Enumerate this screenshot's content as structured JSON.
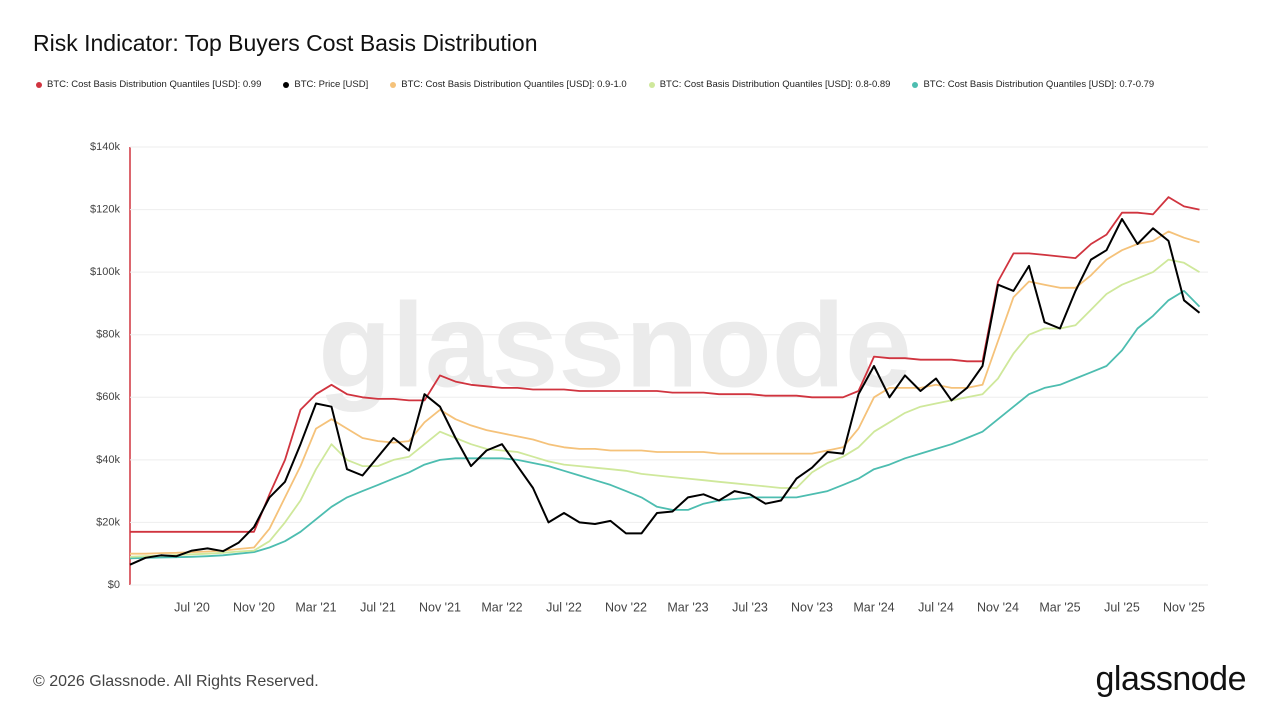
{
  "chart_data": {
    "type": "line",
    "title": "Risk Indicator: Top Buyers Cost Basis Distribution",
    "watermark": "glassnode",
    "categories": [
      null,
      null,
      null,
      null,
      "Jul '20",
      null,
      null,
      null,
      "Nov '20",
      null,
      null,
      null,
      "Mar '21",
      null,
      null,
      null,
      "Jul '21",
      null,
      null,
      null,
      "Nov '21",
      null,
      null,
      null,
      "Mar '22",
      null,
      null,
      null,
      "Jul '22",
      null,
      null,
      null,
      "Nov '22",
      null,
      null,
      null,
      "Mar '23",
      null,
      null,
      null,
      "Jul '23",
      null,
      null,
      null,
      "Nov '23",
      null,
      null,
      null,
      "Mar '24",
      null,
      null,
      null,
      "Jul '24",
      null,
      null,
      null,
      "Nov '24",
      null,
      null,
      null,
      "Mar '25",
      null,
      null,
      null,
      "Jul '25",
      null,
      null,
      null,
      "Nov '25",
      null
    ],
    "series": [
      {
        "name": "BTC: Cost Basis Distribution Quantiles [USD]: 0.99",
        "color": "#d0343f",
        "values": [
          17000,
          17000,
          17000,
          17000,
          17000,
          17000,
          17000,
          17000,
          17000,
          29000,
          40000,
          56000,
          61000,
          64000,
          61000,
          60000,
          59500,
          59500,
          59000,
          59000,
          67000,
          65000,
          64000,
          63500,
          63000,
          63000,
          62500,
          62500,
          62500,
          62000,
          62000,
          62000,
          62000,
          62000,
          62000,
          61500,
          61500,
          61500,
          61000,
          61000,
          61000,
          60500,
          60500,
          60500,
          60000,
          60000,
          60000,
          62000,
          73000,
          72500,
          72500,
          72000,
          72000,
          72000,
          71500,
          71500,
          97000,
          106000,
          106000,
          105500,
          105000,
          104500,
          109000,
          112000,
          119000,
          119000,
          118500,
          124000,
          121000,
          120000
        ]
      },
      {
        "name": "BTC: Price [USD]",
        "color": "#000000",
        "values": [
          6500,
          8700,
          9500,
          9200,
          11000,
          11700,
          10800,
          13500,
          18500,
          28000,
          33000,
          45000,
          58000,
          57000,
          37000,
          35000,
          41000,
          47000,
          43000,
          61000,
          57000,
          47000,
          38000,
          43000,
          45000,
          38000,
          31000,
          20000,
          23000,
          20000,
          19500,
          20500,
          16500,
          16500,
          23000,
          23500,
          28000,
          29000,
          27000,
          30000,
          29000,
          26000,
          27000,
          34000,
          37500,
          42500,
          42000,
          61000,
          70000,
          60000,
          67000,
          62000,
          66000,
          59000,
          63000,
          70000,
          96000,
          94000,
          102000,
          84000,
          82000,
          94000,
          104000,
          107000,
          117000,
          109000,
          114000,
          110000,
          91000,
          87000
        ]
      },
      {
        "name": "BTC: Cost Basis Distribution Quantiles [USD]: 0.9-1.0",
        "color": "#f5c27a",
        "values": [
          10000,
          10000,
          10200,
          10300,
          10500,
          10700,
          11000,
          11500,
          12000,
          18000,
          28000,
          38000,
          50000,
          53000,
          50000,
          47000,
          46000,
          45500,
          46000,
          52000,
          56000,
          53000,
          51000,
          49500,
          48500,
          47500,
          46500,
          45000,
          44000,
          43500,
          43500,
          43000,
          43000,
          43000,
          42500,
          42500,
          42500,
          42500,
          42000,
          42000,
          42000,
          42000,
          42000,
          42000,
          42000,
          43000,
          44000,
          50000,
          60000,
          63000,
          63000,
          63000,
          64000,
          63000,
          63000,
          64000,
          78000,
          92000,
          97000,
          96000,
          95000,
          95000,
          99000,
          104000,
          107000,
          109000,
          110000,
          113000,
          111000,
          109500
        ]
      },
      {
        "name": "BTC: Cost Basis Distribution Quantiles [USD]: 0.8-0.89",
        "color": "#cfe89b",
        "values": [
          9000,
          9200,
          9400,
          9600,
          9800,
          10000,
          10300,
          10700,
          11000,
          14000,
          20000,
          27000,
          37000,
          45000,
          40000,
          38000,
          38000,
          40000,
          41000,
          45000,
          49000,
          47000,
          45000,
          43500,
          43000,
          42500,
          41000,
          39500,
          38500,
          38000,
          37500,
          37000,
          36500,
          35500,
          35000,
          34500,
          34000,
          33500,
          33000,
          32500,
          32000,
          31500,
          31000,
          31000,
          36000,
          39000,
          41000,
          44000,
          49000,
          52000,
          55000,
          57000,
          58000,
          59000,
          60000,
          61000,
          66000,
          74000,
          80000,
          82000,
          82000,
          83000,
          88000,
          93000,
          96000,
          98000,
          100000,
          104000,
          103000,
          100000
        ]
      },
      {
        "name": "BTC: Cost Basis Distribution Quantiles [USD]: 0.7-0.79",
        "color": "#4dbdb0",
        "values": [
          8500,
          8700,
          8800,
          8900,
          9000,
          9200,
          9500,
          10000,
          10500,
          12000,
          14000,
          17000,
          21000,
          25000,
          28000,
          30000,
          32000,
          34000,
          36000,
          38500,
          40000,
          40500,
          40500,
          40500,
          40500,
          40000,
          39000,
          38000,
          36500,
          35000,
          33500,
          32000,
          30000,
          28000,
          25000,
          24000,
          24000,
          26000,
          27000,
          27500,
          28000,
          28000,
          28000,
          28000,
          29000,
          30000,
          32000,
          34000,
          37000,
          38500,
          40500,
          42000,
          43500,
          45000,
          47000,
          49000,
          53000,
          57000,
          61000,
          63000,
          64000,
          66000,
          68000,
          70000,
          75000,
          82000,
          86000,
          91000,
          94000,
          89000
        ]
      }
    ],
    "ylim": [
      0,
      140000
    ],
    "yticks": [
      {
        "value": 0,
        "label": "$0"
      },
      {
        "value": 20000,
        "label": "$20k"
      },
      {
        "value": 40000,
        "label": "$40k"
      },
      {
        "value": 60000,
        "label": "$60k"
      },
      {
        "value": 80000,
        "label": "$80k"
      },
      {
        "value": 100000,
        "label": "$100k"
      },
      {
        "value": 120000,
        "label": "$120k"
      },
      {
        "value": 140000,
        "label": "$140k"
      }
    ],
    "grid": true
  },
  "footer": "© 2026 Glassnode. All Rights Reserved.",
  "logo": "glassnode"
}
